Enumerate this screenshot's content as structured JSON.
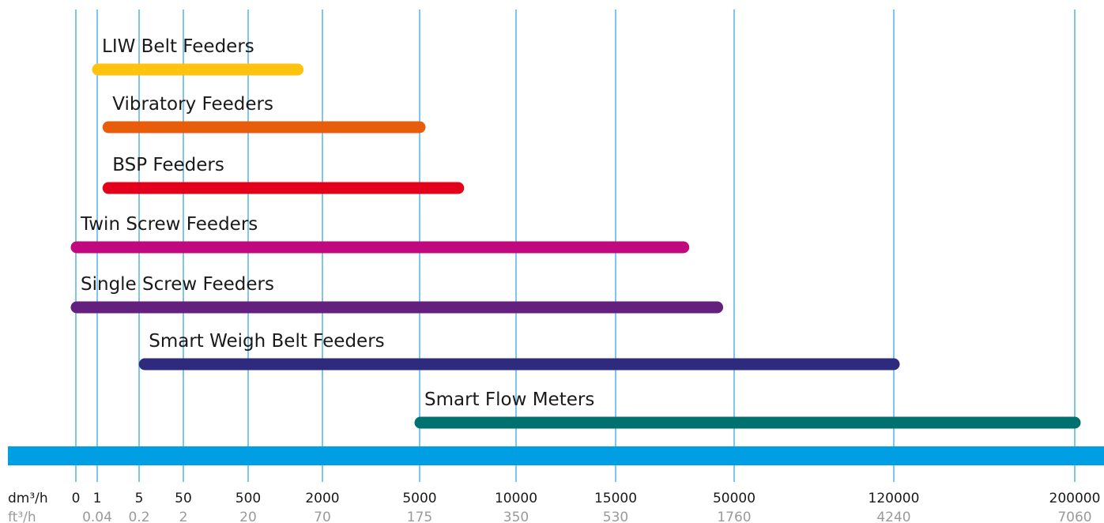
{
  "chart_data": {
    "type": "range-bar",
    "title": "",
    "units": {
      "primary": "dm³/h",
      "secondary": "ft³/h"
    },
    "ticks": [
      {
        "dm": "0",
        "ft": ""
      },
      {
        "dm": "1",
        "ft": "0.04"
      },
      {
        "dm": "5",
        "ft": "0.2"
      },
      {
        "dm": "50",
        "ft": "2"
      },
      {
        "dm": "500",
        "ft": "20"
      },
      {
        "dm": "2000",
        "ft": "70"
      },
      {
        "dm": "5000",
        "ft": "175"
      },
      {
        "dm": "10000",
        "ft": "350"
      },
      {
        "dm": "15000",
        "ft": "530"
      },
      {
        "dm": "50000",
        "ft": "1760"
      },
      {
        "dm": "120000",
        "ft": "4240"
      },
      {
        "dm": "200000",
        "ft": "7060"
      }
    ],
    "series": [
      {
        "name": "LIW Belt Feeders",
        "start": 1,
        "end": 1500,
        "color": "#FFC20E"
      },
      {
        "name": "Vibratory Feeders",
        "start": 2,
        "end": 5000,
        "color": "#E85D0C"
      },
      {
        "name": "BSP Feeders",
        "start": 2,
        "end": 7000,
        "color": "#E2001A"
      },
      {
        "name": "Twin Screw Feeders",
        "start": 0,
        "end": 35000,
        "color": "#C0087F"
      },
      {
        "name": "Single Screw Feeders",
        "start": 0,
        "end": 45000,
        "color": "#63207F"
      },
      {
        "name": "Smart Weigh Belt Feeders",
        "start": 10,
        "end": 120000,
        "color": "#2E2A7D"
      },
      {
        "name": "Smart Flow Meters",
        "start": 5000,
        "end": 200000,
        "color": "#00716E"
      }
    ],
    "colors": {
      "gridline": "#7DC6EE",
      "baseline": "#009FE3"
    }
  }
}
